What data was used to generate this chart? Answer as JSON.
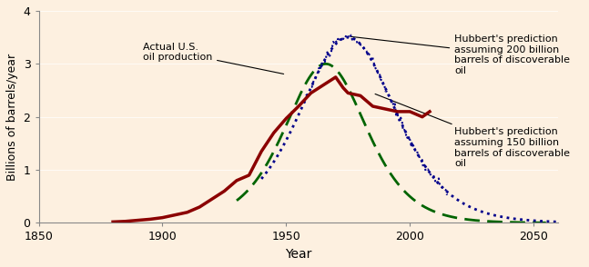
{
  "title": "",
  "xlabel": "Year",
  "ylabel": "Billions of barrels/year",
  "xlim": [
    1850,
    2060
  ],
  "ylim": [
    0,
    4
  ],
  "yticks": [
    0,
    1,
    2,
    3,
    4
  ],
  "xticks": [
    1850,
    1900,
    1950,
    2000,
    2050
  ],
  "background_color": "#fdf0e0",
  "annotation_actual": "Actual U.S.\noil production",
  "annotation_200": "Hubbert's prediction\nassuming 200 billion\nbarrels of discoverable\noil",
  "annotation_150": "Hubbert's prediction\nassuming 150 billion\nbarrels of discoverable\noil",
  "actual_color": "#8b0000",
  "pred200_color": "#00008b",
  "pred150_color": "#006400",
  "actual_lw": 2.5,
  "pred_lw": 2.0
}
